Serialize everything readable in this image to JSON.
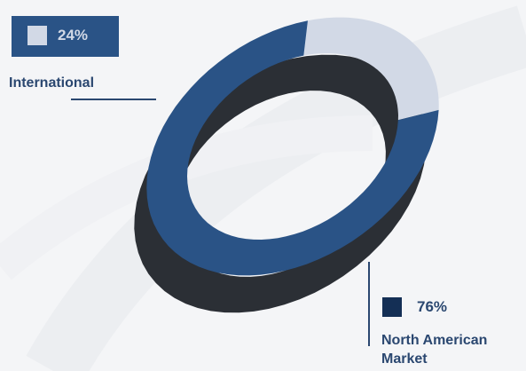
{
  "chart_data": {
    "type": "pie",
    "variant": "donut-3d",
    "categories": [
      "International",
      "North American Market"
    ],
    "values": [
      24,
      76
    ],
    "value_labels": [
      "24%",
      "76%"
    ],
    "colors": {
      "International": "#d2d9e6",
      "North American Market": "#2a5386"
    },
    "legend": "callouts"
  },
  "callouts": {
    "international": {
      "percent": "24%",
      "label": "International"
    },
    "north_american": {
      "percent": "76%",
      "label": "North American Market"
    }
  },
  "colors": {
    "callout_box": "#2a5386",
    "text": "#2a4770",
    "ring_side": "#2b2f35",
    "background": "#f4f5f7"
  }
}
